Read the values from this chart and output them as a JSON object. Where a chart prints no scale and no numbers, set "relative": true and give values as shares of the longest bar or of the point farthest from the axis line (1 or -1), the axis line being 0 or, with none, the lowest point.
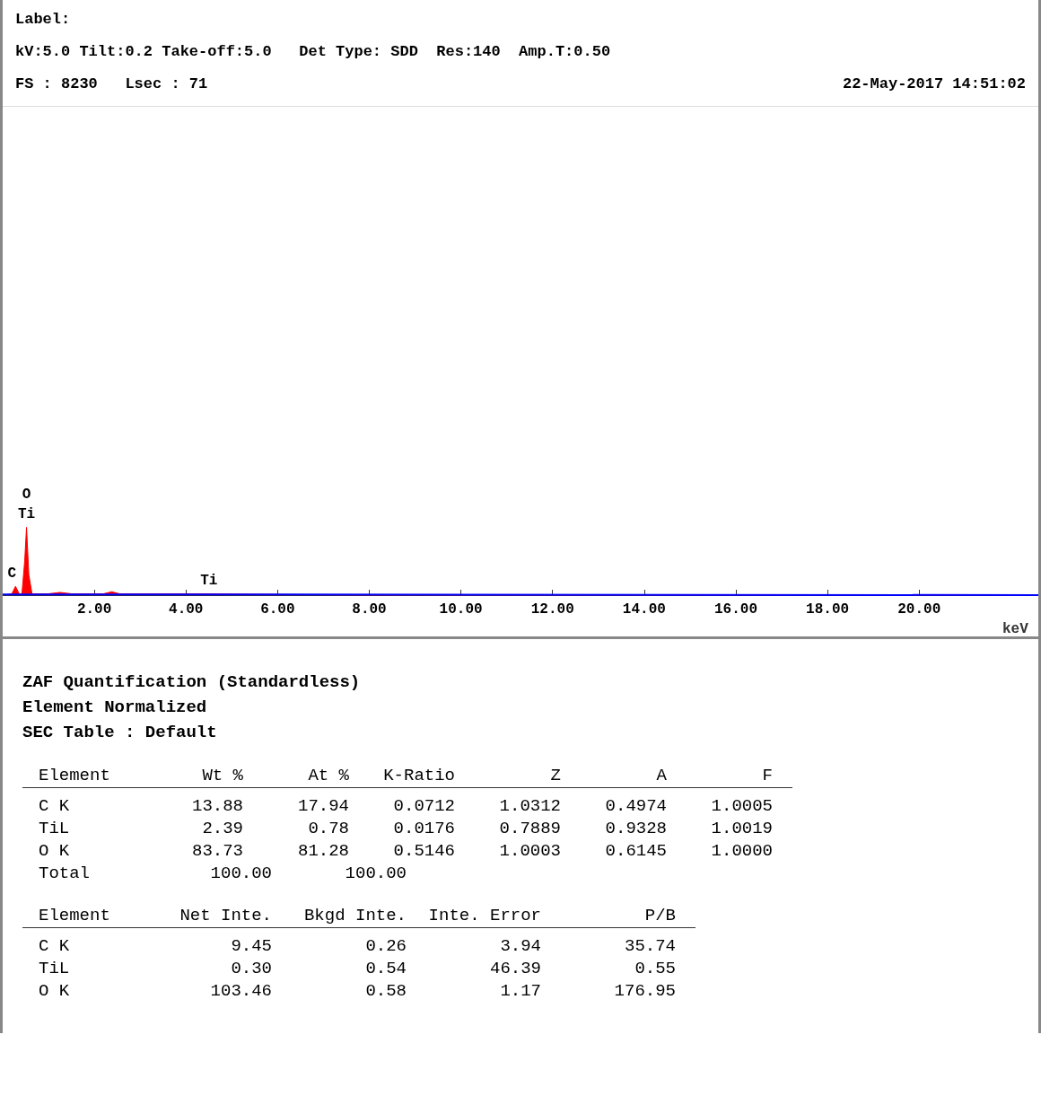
{
  "chart_data": {
    "type": "area",
    "relative": true,
    "xlabel": "keV",
    "grid": false,
    "xlim": [
      0,
      22.6
    ],
    "xticks": [
      {
        "value": 2,
        "label": "2.00"
      },
      {
        "value": 4,
        "label": "4.00"
      },
      {
        "value": 6,
        "label": "6.00"
      },
      {
        "value": 8,
        "label": "8.00"
      },
      {
        "value": 10,
        "label": "10.00"
      },
      {
        "value": 12,
        "label": "12.00"
      },
      {
        "value": 14,
        "label": "14.00"
      },
      {
        "value": 16,
        "label": "16.00"
      },
      {
        "value": 18,
        "label": "18.00"
      },
      {
        "value": 20,
        "label": "20.00"
      }
    ],
    "series": [
      {
        "color": "#ff0000",
        "x": [
          0,
          0.2,
          0.28,
          0.36,
          0.42,
          0.48,
          0.52,
          0.57,
          0.64,
          1.0,
          1.25,
          1.5,
          2.2,
          2.38,
          2.55,
          3.0,
          4.0,
          4.5,
          5.0,
          6.0,
          8,
          10,
          15,
          22.6
        ],
        "values": [
          0,
          0.02,
          0.13,
          0.02,
          0.02,
          0.5,
          1,
          0.3,
          0.02,
          0.02,
          0.04,
          0.02,
          0.02,
          0.05,
          0.02,
          0.02,
          0.02,
          0.02,
          0.015,
          0.01,
          0,
          0,
          0,
          0
        ]
      },
      {
        "type": "line",
        "color": "#0000ff",
        "x": [
          0,
          6,
          22.6
        ],
        "values": [
          0.01,
          0.01,
          0
        ]
      }
    ],
    "annotations": [
      "Label:",
      "kV:5.0 Tilt:0.2 Take-off:5.0   Det Type: SDD  Res:140  Amp.T:0.50",
      "FS : 8230   Lsec : 71",
      "22-May-2017 14:51:02",
      {
        "text": "C",
        "x": 0.2,
        "y": 0.13
      },
      {
        "text": "O",
        "x": 0.52,
        "y": 1
      },
      {
        "text": "Ti",
        "x": 0.52,
        "y": 1
      },
      {
        "text": "Ti",
        "x": 4.5,
        "y": 0.02
      },
      "ZAF Quantification (Standardless)",
      "Element Normalized",
      "SEC Table : Default",
      "Element  Wt %  At %  K-Ratio  Z  A  F",
      "C K  13.88  17.94  0.0712  1.0312  0.4974  1.0005",
      "TiL  2.39  0.78  0.0176  0.7889  0.9328  1.0019",
      "O K  83.73  81.28  0.5146  1.0003  0.6145  1.0000",
      "Total  100.00  100.00",
      "Element  Net Inte.  Bkgd Inte.  Inte. Error  P/B",
      "C K  9.45  0.26  3.94  35.74",
      "TiL  0.30  0.54  46.39  0.55",
      "O K  103.46  0.58  1.17  176.95"
    ]
  }
}
